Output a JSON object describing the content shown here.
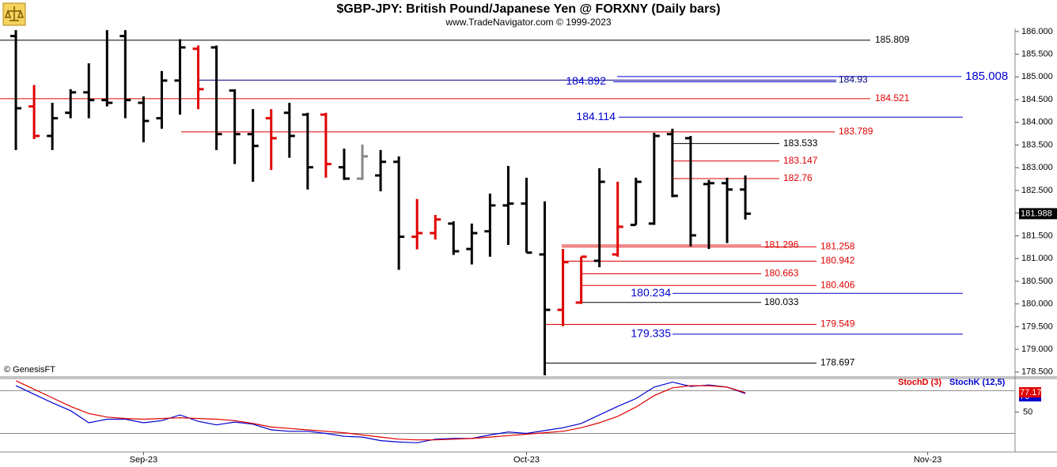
{
  "chart_data": [
    {
      "type": "ohlc",
      "title": "$GBP-JPY:  British Pound/Japanese Yen @ FORXNY  (Daily bars)",
      "subtitle": "www.TradeNavigator.com © 1999-2023",
      "source": "© GenesisFT",
      "xlim": [
        -0.87,
        54.79
      ],
      "xticks": [
        {
          "value": 7,
          "label": "Sep-23"
        },
        {
          "value": 28,
          "label": "Oct-23"
        },
        {
          "value": 50,
          "label": "Nov-23"
        }
      ],
      "ylim": [
        178.41,
        186.05
      ],
      "yticks": [
        {
          "value": 178.5,
          "label": "178.500"
        },
        {
          "value": 179,
          "label": "179.000"
        },
        {
          "value": 179.5,
          "label": "179.500"
        },
        {
          "value": 180,
          "label": "180.000"
        },
        {
          "value": 180.5,
          "label": "180.500"
        },
        {
          "value": 181,
          "label": "181.000"
        },
        {
          "value": 181.5,
          "label": "181.500"
        },
        {
          "value": 182,
          "label": "182.000"
        },
        {
          "value": 182.5,
          "label": "182.500"
        },
        {
          "value": 183,
          "label": "183.000"
        },
        {
          "value": 183.5,
          "label": "183.500"
        },
        {
          "value": 184,
          "label": "184.000"
        },
        {
          "value": 184.5,
          "label": "184.500"
        },
        {
          "value": 185,
          "label": "185.000"
        },
        {
          "value": 185.5,
          "label": "185.500"
        },
        {
          "value": 186,
          "label": "186.000"
        }
      ],
      "open": [
        185.9,
        184.35,
        183.7,
        184.21,
        184.66,
        184.49,
        185.9,
        184.43,
        184.09,
        184.92,
        185.62,
        185.65,
        184.7,
        183.74,
        184.09,
        184.21,
        184.17,
        184.17,
        183.01,
        182.76,
        182.83,
        183.13,
        181.48,
        181.56,
        181.77,
        181.21,
        181.6,
        182.17,
        182.21,
        181.09,
        179.87,
        180.03,
        180.95,
        181.09,
        181.74,
        181.77,
        183.74,
        183.65,
        182.64,
        182.66,
        182.52
      ],
      "high": [
        186.03,
        184.82,
        184.43,
        184.73,
        185.3,
        186.03,
        186.03,
        184.57,
        185.13,
        185.83,
        185.69,
        185.69,
        184.73,
        184.29,
        184.29,
        184.43,
        184.21,
        184.21,
        183.42,
        183.51,
        183.39,
        183.25,
        182.31,
        181.96,
        181.82,
        181.77,
        182.43,
        183.04,
        182.78,
        182.26,
        181.21,
        181.04,
        182.99,
        182.69,
        182.78,
        183.77,
        183.86,
        183.7,
        182.73,
        182.78,
        182.83
      ],
      "low": [
        183.39,
        183.63,
        183.39,
        184.09,
        184.09,
        184.35,
        184.09,
        183.56,
        183.86,
        184.17,
        184.29,
        183.39,
        183.08,
        182.69,
        182.95,
        183.22,
        182.52,
        182.78,
        182.73,
        182.73,
        182.48,
        180.75,
        181.2,
        181.42,
        181.08,
        180.87,
        181.04,
        181.3,
        181.13,
        178.43,
        179.51,
        180.0,
        180.81,
        181.04,
        181.74,
        181.74,
        182.35,
        181.27,
        181.21,
        181.34,
        181.86
      ],
      "close": [
        184.31,
        183.7,
        184.09,
        184.66,
        184.49,
        184.43,
        184.49,
        184.03,
        184.92,
        185.65,
        184.73,
        183.74,
        183.74,
        183.48,
        183.65,
        183.7,
        183.01,
        183.08,
        182.76,
        183.25,
        183.13,
        181.48,
        181.56,
        181.86,
        181.16,
        181.56,
        182.17,
        182.21,
        181.13,
        179.87,
        180.92,
        181.04,
        182.69,
        181.7,
        182.69,
        183.7,
        182.38,
        181.51,
        182.66,
        182.52,
        181.988
      ],
      "colors": [
        "#000000",
        "#e00000",
        "#000000",
        "#000000",
        "#000000",
        "#000000",
        "#000000",
        "#000000",
        "#000000",
        "#000000",
        "#e00000",
        "#000000",
        "#000000",
        "#000000",
        "#e00000",
        "#000000",
        "#000000",
        "#e00000",
        "#000000",
        "#888888",
        "#000000",
        "#000000",
        "#e00000",
        "#e00000",
        "#000000",
        "#000000",
        "#000000",
        "#000000",
        "#000000",
        "#000000",
        "#e00000",
        "#e00000",
        "#000000",
        "#e00000",
        "#000000",
        "#000000",
        "#000000",
        "#000000",
        "#000000",
        "#000000",
        "#000000"
      ],
      "levels": [
        {
          "value": 185.809,
          "color": "#000000"
        },
        {
          "value": 185.008,
          "color": "#0000d0"
        },
        {
          "value": 184.93,
          "color": "#000080"
        },
        {
          "value": 184.892,
          "color": "#0000d0"
        },
        {
          "value": 184.521,
          "color": "#e00000"
        },
        {
          "value": 184.114,
          "color": "#0000d0"
        },
        {
          "value": 183.789,
          "color": "#e00000"
        },
        {
          "value": 183.533,
          "color": "#000000"
        },
        {
          "value": 183.147,
          "color": "#e00000"
        },
        {
          "value": 182.76,
          "color": "#e00000"
        },
        {
          "value": 181.296,
          "color": "#e00000"
        },
        {
          "value": 181.258,
          "color": "#e00000"
        },
        {
          "value": 180.942,
          "color": "#e00000"
        },
        {
          "value": 180.663,
          "color": "#e00000"
        },
        {
          "value": 180.406,
          "color": "#e00000"
        },
        {
          "value": 180.234,
          "color": "#0000d0"
        },
        {
          "value": 180.033,
          "color": "#000000"
        },
        {
          "value": 179.549,
          "color": "#e00000"
        },
        {
          "value": 179.335,
          "color": "#0000d0"
        },
        {
          "value": 178.697,
          "color": "#000000"
        }
      ]
    },
    {
      "type": "line",
      "ylim": [
        -6,
        96
      ],
      "yticks": [
        50
      ],
      "reference_lines": [
        20,
        80
      ],
      "series": [
        {
          "name": "StochD (3)",
          "color": "#e00000",
          "values": [
            94,
            82,
            70,
            58,
            48,
            43,
            41,
            40,
            41,
            42,
            41,
            40,
            38,
            34,
            29,
            27,
            25,
            23,
            21,
            18,
            15,
            12,
            11,
            11,
            12,
            13,
            15,
            17,
            19,
            21,
            23,
            28,
            35,
            44,
            57,
            73,
            84,
            87,
            87,
            85,
            77.17
          ]
        },
        {
          "name": "StochK (12,5)",
          "color": "#0000d0",
          "values": [
            87,
            75,
            63,
            52,
            35,
            40,
            40,
            35,
            38,
            46,
            37,
            32,
            36,
            33,
            25,
            23,
            23,
            20,
            16,
            15,
            10,
            8,
            7,
            12,
            13,
            13,
            18,
            22,
            20,
            24,
            28,
            34,
            46,
            58,
            69,
            85,
            92,
            86,
            88,
            85,
            76
          ]
        }
      ]
    }
  ]
}
